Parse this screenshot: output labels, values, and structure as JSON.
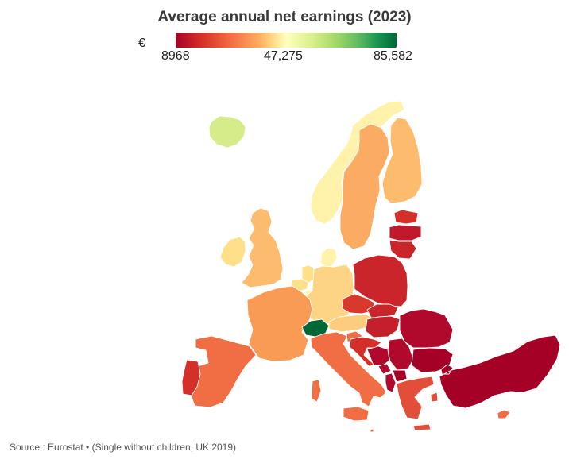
{
  "title": "Average annual net earnings (2023)",
  "legend": {
    "unit": "€",
    "min_label": "8968",
    "mid_label": "47,275",
    "max_label": "85,582",
    "min_value": 8968,
    "max_value": 85582,
    "color_scale": [
      "#a50026",
      "#d73027",
      "#f46d43",
      "#fdae61",
      "#fee08b",
      "#ffffbf",
      "#d9ef8b",
      "#a6d96a",
      "#66bd63",
      "#1a9850",
      "#006837"
    ]
  },
  "regions": [
    {
      "name": "Iceland",
      "color": "#d6ec8a"
    },
    {
      "name": "Ireland",
      "color": "#fee08b"
    },
    {
      "name": "United Kingdom",
      "color": "#fdbb6d"
    },
    {
      "name": "Norway",
      "color": "#fff3ab"
    },
    {
      "name": "Sweden",
      "color": "#fcab63"
    },
    {
      "name": "Finland",
      "color": "#fdbb6d"
    },
    {
      "name": "Denmark",
      "color": "#fff3ab"
    },
    {
      "name": "Netherlands",
      "color": "#fee08b"
    },
    {
      "name": "Belgium",
      "color": "#fee08b"
    },
    {
      "name": "Luxembourg",
      "color": "#f9f8a8"
    },
    {
      "name": "Germany",
      "color": "#fdd486"
    },
    {
      "name": "France",
      "color": "#f99b55"
    },
    {
      "name": "Switzerland",
      "color": "#006837"
    },
    {
      "name": "Austria",
      "color": "#fdcd7d"
    },
    {
      "name": "Italy",
      "color": "#f16d43"
    },
    {
      "name": "Spain",
      "color": "#f16d43"
    },
    {
      "name": "Portugal",
      "color": "#d42f28"
    },
    {
      "name": "Poland",
      "color": "#c9252a"
    },
    {
      "name": "Czechia",
      "color": "#d73a2c"
    },
    {
      "name": "Slovakia",
      "color": "#c9252a"
    },
    {
      "name": "Hungary",
      "color": "#c4202c"
    },
    {
      "name": "Slovenia",
      "color": "#f16d43"
    },
    {
      "name": "Croatia",
      "color": "#d42f28"
    },
    {
      "name": "Estonia",
      "color": "#d42f28"
    },
    {
      "name": "Latvia",
      "color": "#c1182b"
    },
    {
      "name": "Lithuania",
      "color": "#c9252a"
    },
    {
      "name": "Romania",
      "color": "#b0092b"
    },
    {
      "name": "Serbia",
      "color": "#b0092b"
    },
    {
      "name": "Bosnia and Herzegovina",
      "color": "#b0092b"
    },
    {
      "name": "Montenegro",
      "color": "#b0092b"
    },
    {
      "name": "Albania",
      "color": "#b0092b"
    },
    {
      "name": "North Macedonia",
      "color": "#a50026"
    },
    {
      "name": "Bulgaria",
      "color": "#a50026"
    },
    {
      "name": "Greece",
      "color": "#e34e3a"
    },
    {
      "name": "Turkey",
      "color": "#a50026"
    },
    {
      "name": "Cyprus",
      "color": "#f16d43"
    },
    {
      "name": "Malta",
      "color": "#f16d43"
    }
  ],
  "footer": {
    "source": "Source : Eurostat • (Single without children, UK 2019)"
  }
}
